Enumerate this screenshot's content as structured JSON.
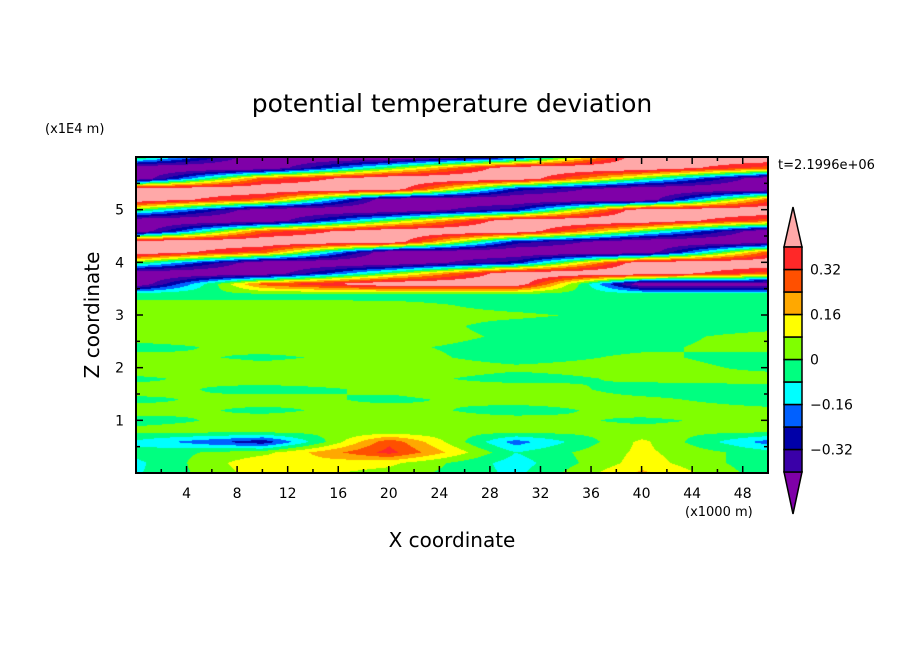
{
  "chart_data": {
    "type": "heatmap",
    "title": "potential temperature deviation",
    "xlabel": "X coordinate",
    "ylabel": "Z coordinate",
    "x_unit_label": "(x1000 m)",
    "y_unit_label": "(x1E4 m)",
    "time_label": "t=2.1996e+06",
    "xlim": [
      0,
      50
    ],
    "ylim": [
      0,
      6
    ],
    "x_ticks": [
      4,
      8,
      12,
      16,
      20,
      24,
      28,
      32,
      36,
      40,
      44,
      48
    ],
    "y_ticks": [
      1,
      2,
      3,
      4,
      5
    ],
    "grid": false,
    "colorbar": {
      "levels": [
        -0.4,
        -0.32,
        -0.24,
        -0.16,
        -0.08,
        0,
        0.08,
        0.16,
        0.24,
        0.32,
        0.4
      ],
      "tick_labels": [
        {
          "value": 0.32,
          "label": "0.32"
        },
        {
          "value": 0.16,
          "label": "0.16"
        },
        {
          "value": 0,
          "label": "0"
        },
        {
          "value": -0.16,
          "label": "−0.16"
        },
        {
          "value": -0.32,
          "label": "−0.32"
        }
      ],
      "colors": [
        "#7f00a8",
        "#3a00a8",
        "#0000a8",
        "#0060ff",
        "#00ffff",
        "#00ff80",
        "#80ff00",
        "#ffff00",
        "#ffa800",
        "#ff5000",
        "#ff2828",
        "#ffa8a8"
      ],
      "extend": "both",
      "placement": "right"
    },
    "grid_x": [
      0,
      10,
      20,
      30,
      40,
      50
    ],
    "grid_z": [
      6.0,
      5.8,
      5.6,
      5.4,
      5.2,
      5.0,
      4.8,
      4.6,
      4.4,
      4.2,
      4.0,
      3.8,
      3.6,
      3.4,
      3.2,
      3.0,
      2.8,
      2.6,
      2.4,
      2.2,
      2.0,
      1.8,
      1.6,
      1.4,
      1.2,
      1.0,
      0.8,
      0.6,
      0.4,
      0.2,
      0.0
    ],
    "values_approx": [
      [
        0,
        -0.5,
        -0.5,
        -0.28,
        0.5,
        0.5
      ],
      [
        -0.5,
        -0.5,
        0,
        0.5,
        0.5,
        0.28
      ],
      [
        -0.5,
        0.28,
        0.5,
        0.5,
        0,
        -0.5
      ],
      [
        0.5,
        0.5,
        0.5,
        -0.28,
        -0.5,
        -0.5
      ],
      [
        0.5,
        0.28,
        -0.5,
        -0.5,
        -0.5,
        0.28
      ],
      [
        0,
        -0.5,
        -0.5,
        -0.28,
        0.5,
        0.5
      ],
      [
        -0.5,
        -0.5,
        0,
        0.5,
        0.5,
        0.28
      ],
      [
        -0.5,
        0.28,
        0.5,
        0.5,
        0,
        -0.5
      ],
      [
        0.5,
        0.5,
        0.5,
        -0.28,
        -0.5,
        -0.5
      ],
      [
        0.5,
        0.28,
        -0.5,
        -0.5,
        -0.5,
        0.28
      ],
      [
        0,
        -0.5,
        -0.5,
        -0.28,
        0.5,
        0.5
      ],
      [
        -0.5,
        -0.5,
        0,
        0.5,
        0.5,
        0.28
      ],
      [
        -0.5,
        0.28,
        0.5,
        0.5,
        -0.5,
        -0.5
      ],
      [
        -0.02,
        -0.02,
        -0.03,
        -0.03,
        -0.03,
        -0.03
      ],
      [
        0.02,
        0.02,
        0.02,
        -0.02,
        -0.03,
        -0.03
      ],
      [
        0.03,
        0.03,
        0.02,
        0.01,
        -0.02,
        -0.03
      ],
      [
        0.02,
        0.03,
        0.03,
        -0.02,
        -0.03,
        -0.02
      ],
      [
        0.03,
        0.02,
        0.03,
        -0.01,
        -0.02,
        0.02
      ],
      [
        -0.02,
        0.02,
        0.01,
        -0.02,
        -0.01,
        0.02
      ],
      [
        0.02,
        -0.01,
        0.02,
        -0.02,
        0.01,
        -0.02
      ],
      [
        0.03,
        0.02,
        0.03,
        0.01,
        0.02,
        -0.01
      ],
      [
        -0.01,
        0.03,
        0.02,
        -0.02,
        0.01,
        0.02
      ],
      [
        0.02,
        -0.02,
        0.01,
        0.03,
        -0.02,
        -0.02
      ],
      [
        -0.01,
        0.02,
        -0.01,
        0.02,
        0.01,
        -0.02
      ],
      [
        0.02,
        -0.01,
        0.02,
        -0.02,
        0.02,
        0.01
      ],
      [
        -0.02,
        0.02,
        0.01,
        0.02,
        -0.01,
        0.02
      ],
      [
        0.02,
        0.03,
        0.02,
        0.03,
        0.02,
        0.02
      ],
      [
        -0.1,
        -0.3,
        0.3,
        -0.2,
        0.1,
        -0.2
      ],
      [
        -0.05,
        0.05,
        0.35,
        -0.08,
        0.1,
        -0.05
      ],
      [
        -0.1,
        0.15,
        0.1,
        -0.12,
        0.12,
        -0.06
      ],
      [
        -0.09,
        0.12,
        0.05,
        -0.1,
        0.18,
        -0.05
      ]
    ]
  }
}
